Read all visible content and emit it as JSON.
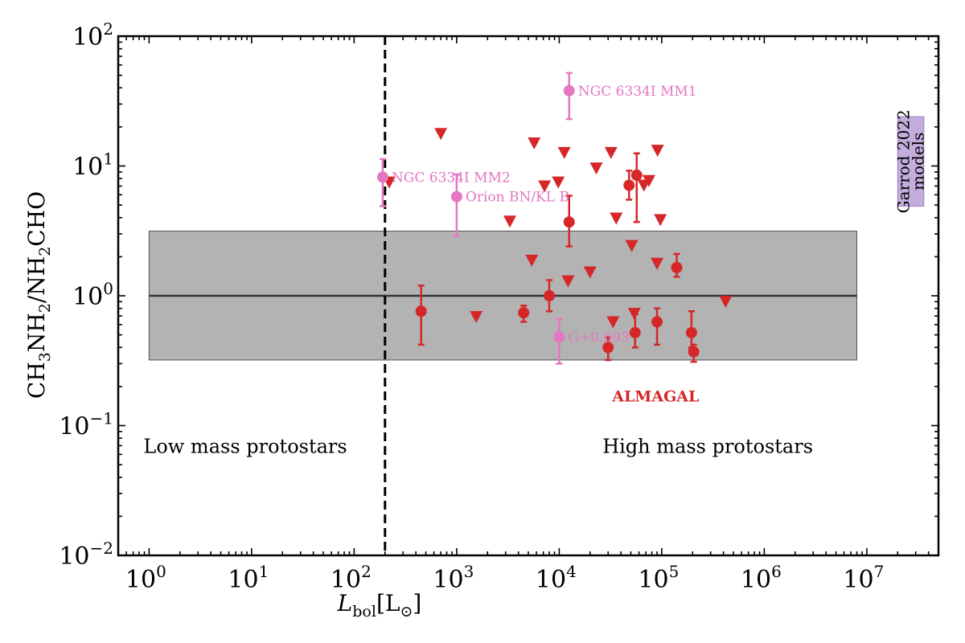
{
  "chart_data": {
    "type": "scatter",
    "title": "",
    "xlabel_main": "L",
    "xlabel_sub": "bol",
    "xlabel_unit": "[L",
    "xlabel_unit_sym": "⊙",
    "xlabel_unit_end": "]",
    "ylabel": "CH3NH2/NH2CHO",
    "x_scale": "log",
    "y_scale": "log",
    "xlim": [
      0.5,
      50000000
    ],
    "ylim": [
      0.01,
      100
    ],
    "x_ticks": [
      {
        "value": 1,
        "base": "10",
        "exp": "0"
      },
      {
        "value": 10,
        "base": "10",
        "exp": "1"
      },
      {
        "value": 100,
        "base": "10",
        "exp": "2"
      },
      {
        "value": 1000,
        "base": "10",
        "exp": "3"
      },
      {
        "value": 10000,
        "base": "10",
        "exp": "4"
      },
      {
        "value": 100000,
        "base": "10",
        "exp": "5"
      },
      {
        "value": 1000000,
        "base": "10",
        "exp": "6"
      },
      {
        "value": 10000000,
        "base": "10",
        "exp": "7"
      }
    ],
    "y_ticks": [
      {
        "value": 0.01,
        "base": "10",
        "exp": "−2"
      },
      {
        "value": 0.1,
        "base": "10",
        "exp": "−1"
      },
      {
        "value": 1,
        "base": "10",
        "exp": "0"
      },
      {
        "value": 10,
        "base": "10",
        "exp": "1"
      },
      {
        "value": 100,
        "base": "10",
        "exp": "2"
      }
    ],
    "band": {
      "x": [
        1,
        8000000
      ],
      "y_low": 0.32,
      "y_high": 3.15,
      "median": 1.0,
      "color": "#b3b3b3"
    },
    "divider_x": 200,
    "colors": {
      "almagal": "#d62728",
      "literature": "#e377c2",
      "garrod": "#9467bd"
    },
    "region_labels": [
      {
        "text": "Low mass protostars",
        "x": 1,
        "y": 0.07,
        "anchor": "start"
      },
      {
        "text": "High mass protostars",
        "x": 30000,
        "y": 0.07,
        "anchor": "start"
      }
    ],
    "almagal_label": {
      "text": "ALMAGAL",
      "x": 30000,
      "y": 0.17
    },
    "garrod": {
      "x": [
        20000000,
        36000000
      ],
      "y": [
        4.9,
        24
      ],
      "line1": "Garrod 2022",
      "line2": "models"
    },
    "literature": [
      {
        "name": "NGC 6334I MM1",
        "x": 12500,
        "y": 38,
        "lo": 23,
        "hi": 52
      },
      {
        "name": "NGC 6334I MM2",
        "x": 190,
        "y": 8.2,
        "lo": 4.9,
        "hi": 11.3
      },
      {
        "name": "Orion BN/KL B",
        "x": 1000,
        "y": 5.8,
        "lo": 2.9,
        "hi": 8.6
      },
      {
        "name": "G+0.693",
        "x": 10000,
        "y": 0.48,
        "lo": 0.3,
        "hi": 0.66
      }
    ],
    "almagal_detections": [
      {
        "x": 450,
        "y": 0.76,
        "lo": 0.42,
        "hi": 1.2
      },
      {
        "x": 4500,
        "y": 0.74,
        "lo": 0.63,
        "hi": 0.84
      },
      {
        "x": 8000,
        "y": 1.0,
        "lo": 0.76,
        "hi": 1.32
      },
      {
        "x": 12500,
        "y": 3.7,
        "lo": 2.4,
        "hi": 5.9
      },
      {
        "x": 30000,
        "y": 0.4,
        "lo": 0.32,
        "hi": 0.48
      },
      {
        "x": 48000,
        "y": 7.1,
        "lo": 5.5,
        "hi": 9.2
      },
      {
        "x": 55000,
        "y": 0.52,
        "lo": 0.4,
        "hi": 0.72
      },
      {
        "x": 57000,
        "y": 8.5,
        "lo": 3.7,
        "hi": 12.5
      },
      {
        "x": 90000,
        "y": 0.63,
        "lo": 0.42,
        "hi": 0.8
      },
      {
        "x": 140000,
        "y": 1.65,
        "lo": 1.4,
        "hi": 2.1
      },
      {
        "x": 195000,
        "y": 0.52,
        "lo": 0.4,
        "hi": 0.76
      },
      {
        "x": 205000,
        "y": 0.37,
        "lo": 0.31,
        "hi": 0.42
      }
    ],
    "almagal_upper_limits": [
      {
        "x": 220,
        "y": 7.4
      },
      {
        "x": 700,
        "y": 17.5
      },
      {
        "x": 1550,
        "y": 0.68
      },
      {
        "x": 3300,
        "y": 3.7
      },
      {
        "x": 5400,
        "y": 1.85
      },
      {
        "x": 5700,
        "y": 14.8
      },
      {
        "x": 7200,
        "y": 6.9
      },
      {
        "x": 9800,
        "y": 7.4
      },
      {
        "x": 11200,
        "y": 12.5
      },
      {
        "x": 12200,
        "y": 1.28
      },
      {
        "x": 20000,
        "y": 1.5
      },
      {
        "x": 23000,
        "y": 9.5
      },
      {
        "x": 32000,
        "y": 12.5
      },
      {
        "x": 33500,
        "y": 0.62
      },
      {
        "x": 36000,
        "y": 3.9
      },
      {
        "x": 51000,
        "y": 2.4
      },
      {
        "x": 54000,
        "y": 0.72
      },
      {
        "x": 67000,
        "y": 7.0
      },
      {
        "x": 75000,
        "y": 7.6
      },
      {
        "x": 90000,
        "y": 1.75
      },
      {
        "x": 91000,
        "y": 13.0
      },
      {
        "x": 97000,
        "y": 3.8
      },
      {
        "x": 420000,
        "y": 0.89
      }
    ]
  }
}
